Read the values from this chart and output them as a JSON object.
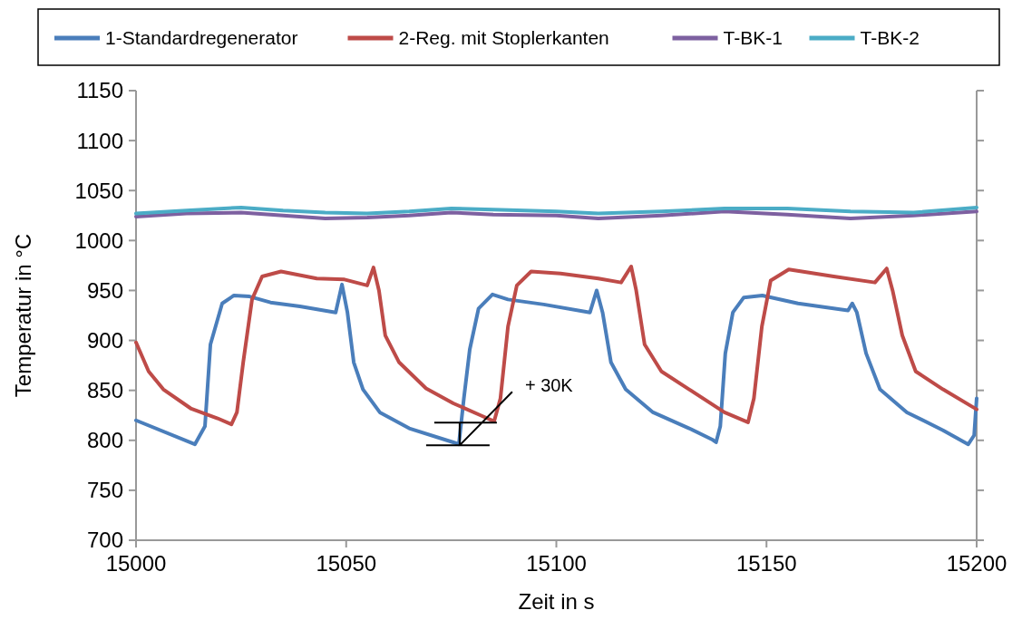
{
  "chart_data": {
    "type": "line",
    "xlabel": "Zeit in s",
    "ylabel": "Temperatur in °C",
    "xlim": [
      15000,
      15200
    ],
    "xticks": [
      15000,
      15050,
      15100,
      15150,
      15200
    ],
    "ylim": [
      700,
      1150
    ],
    "yticks": [
      700,
      750,
      800,
      850,
      900,
      950,
      1000,
      1050,
      1100,
      1150
    ],
    "grid": false,
    "legend": "top",
    "marker": "none",
    "line_style": "solid",
    "annotations": [
      {
        "text": "+ 30K",
        "x": 15077,
        "y": 796
      }
    ],
    "series": [
      {
        "name": "1-Standardregenerator",
        "color": "#4a7ebb",
        "x": [
          15000,
          15014,
          15016.4,
          15017.7,
          15020.5,
          15023.3,
          15027,
          15032,
          15039,
          15047.5,
          15049,
          15050.3,
          15051.8,
          15054,
          15058,
          15065,
          15075.5,
          15076.8,
          15078,
          15079.4,
          15081.5,
          15084.8,
          15088.5,
          15097,
          15108,
          15109.6,
          15111,
          15113,
          15116.5,
          15123,
          15131.6,
          15137,
          15138,
          15139,
          15140.2,
          15142,
          15144.6,
          15149,
          15157.5,
          15169.4,
          15170.4,
          15171.5,
          15173.7,
          15177,
          15183.4,
          15192,
          15198,
          15199.4,
          15200
        ],
        "values": [
          820,
          796,
          814,
          896,
          937,
          945,
          944,
          938,
          934,
          928,
          956,
          928,
          878,
          851,
          828,
          812,
          798,
          796,
          842,
          891,
          932,
          946,
          941,
          936,
          928,
          950,
          928,
          878,
          851,
          828,
          812,
          801,
          798,
          814,
          887,
          928,
          943,
          945,
          937,
          930,
          937,
          928,
          887,
          851,
          828,
          810,
          796,
          805,
          842
        ]
      },
      {
        "name": "2-Reg. mit Stoplerkanten",
        "color": "#be4b48",
        "x": [
          15000,
          15003,
          15006.5,
          15013,
          15019.4,
          15022.7,
          15024,
          15025.5,
          15027.6,
          15030,
          15034.5,
          15043,
          15049.6,
          15055,
          15056.5,
          15057.8,
          15059.3,
          15062.6,
          15069,
          15075.5,
          15082,
          15085.2,
          15086.7,
          15088.5,
          15090.6,
          15094,
          15101,
          15110,
          15115.4,
          15117.8,
          15119,
          15121,
          15125,
          15131.6,
          15140,
          15145.6,
          15147,
          15148.9,
          15151,
          15155.3,
          15166,
          15175.8,
          15178.6,
          15180,
          15182.3,
          15185.5,
          15192,
          15200
        ],
        "values": [
          898,
          869,
          851,
          832,
          822,
          816,
          828,
          878,
          941,
          964,
          969,
          962,
          961,
          955,
          973,
          950,
          905,
          878,
          852,
          837,
          825,
          819,
          842,
          914,
          955,
          969,
          967,
          962,
          958,
          974,
          950,
          896,
          869,
          851,
          828,
          818,
          842,
          914,
          960,
          971,
          964,
          958,
          972,
          950,
          905,
          869,
          851,
          831
        ]
      },
      {
        "name": "T-BK-1",
        "color": "#7d60a0",
        "x": [
          15000,
          15012,
          15025,
          15035,
          15045,
          15055,
          15065,
          15075,
          15085,
          15100,
          15110,
          15125,
          15140,
          15155,
          15170,
          15185,
          15200
        ],
        "values": [
          1024,
          1027,
          1028,
          1025,
          1022,
          1023,
          1025,
          1028,
          1026,
          1025,
          1022,
          1025,
          1029,
          1026,
          1022,
          1025,
          1029
        ]
      },
      {
        "name": "T-BK-2",
        "color": "#4bacc6",
        "x": [
          15000,
          15012,
          15025,
          15035,
          15045,
          15055,
          15065,
          15075,
          15085,
          15100,
          15110,
          15125,
          15140,
          15155,
          15170,
          15185,
          15200
        ],
        "values": [
          1027,
          1030,
          1033,
          1030,
          1028,
          1027,
          1029,
          1032,
          1031,
          1029,
          1027,
          1029,
          1032,
          1032,
          1029,
          1028,
          1033
        ]
      }
    ]
  }
}
